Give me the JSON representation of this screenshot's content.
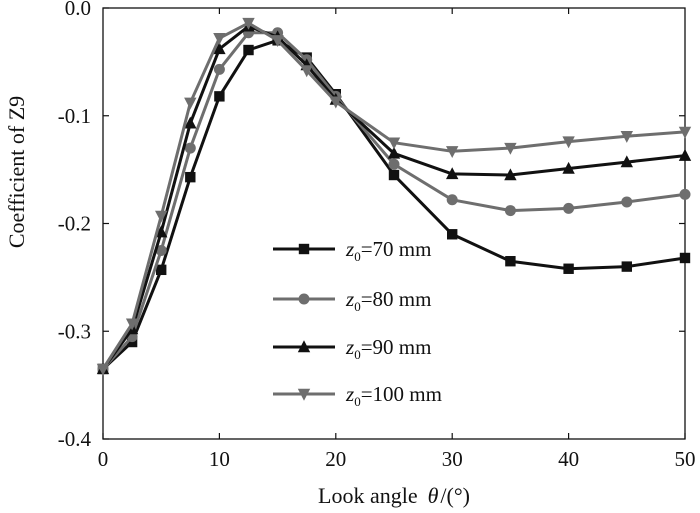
{
  "chart_data": {
    "type": "line",
    "xlabel": "Look angle",
    "xlabel_symbol": "θ",
    "xlabel_unit": "/(°)",
    "ylabel": "Coefficient of Z9",
    "xlim": [
      0,
      50
    ],
    "ylim": [
      -0.4,
      0.0
    ],
    "x_ticks": [
      0,
      10,
      20,
      30,
      40,
      50
    ],
    "x_tick_labels": [
      "0",
      "10",
      "20",
      "30",
      "40",
      "50"
    ],
    "y_ticks": [
      0.0,
      -0.1,
      -0.2,
      -0.3,
      -0.4
    ],
    "y_tick_labels": [
      "0.0",
      "-0.1",
      "-0.2",
      "-0.3",
      "-0.4"
    ],
    "grid": false,
    "legend_position": "center-right",
    "x": [
      0,
      2.5,
      5,
      7.5,
      10,
      12.5,
      15,
      17.5,
      20,
      25,
      30,
      35,
      40,
      45,
      50
    ],
    "series": [
      {
        "name": "z0=70 mm",
        "legend_prefix": "z",
        "legend_subscript": "0",
        "legend_suffix": "=70 mm",
        "marker": "square",
        "color": "#111111",
        "values": [
          -0.335,
          -0.31,
          -0.243,
          -0.157,
          -0.082,
          -0.039,
          -0.03,
          -0.046,
          -0.08,
          -0.155,
          -0.21,
          -0.235,
          -0.242,
          -0.24,
          -0.232
        ]
      },
      {
        "name": "z0=80 mm",
        "legend_prefix": "z",
        "legend_subscript": "0",
        "legend_suffix": "=80 mm",
        "marker": "circle",
        "color": "#6e6e6e",
        "values": [
          -0.335,
          -0.305,
          -0.225,
          -0.13,
          -0.057,
          -0.023,
          -0.023,
          -0.048,
          -0.082,
          -0.145,
          -0.178,
          -0.188,
          -0.186,
          -0.18,
          -0.173
        ]
      },
      {
        "name": "z0=90 mm",
        "legend_prefix": "z",
        "legend_subscript": "0",
        "legend_suffix": "=90 mm",
        "marker": "triangle-up",
        "color": "#111111",
        "values": [
          -0.335,
          -0.298,
          -0.208,
          -0.107,
          -0.038,
          -0.017,
          -0.027,
          -0.053,
          -0.085,
          -0.135,
          -0.154,
          -0.155,
          -0.149,
          -0.143,
          -0.137
        ]
      },
      {
        "name": "z0=100 mm",
        "legend_prefix": "z",
        "legend_subscript": "0",
        "legend_suffix": "=100 mm",
        "marker": "triangle-down",
        "color": "#6e6e6e",
        "values": [
          -0.335,
          -0.293,
          -0.193,
          -0.088,
          -0.028,
          -0.014,
          -0.03,
          -0.058,
          -0.087,
          -0.125,
          -0.133,
          -0.13,
          -0.124,
          -0.119,
          -0.115
        ]
      }
    ]
  }
}
